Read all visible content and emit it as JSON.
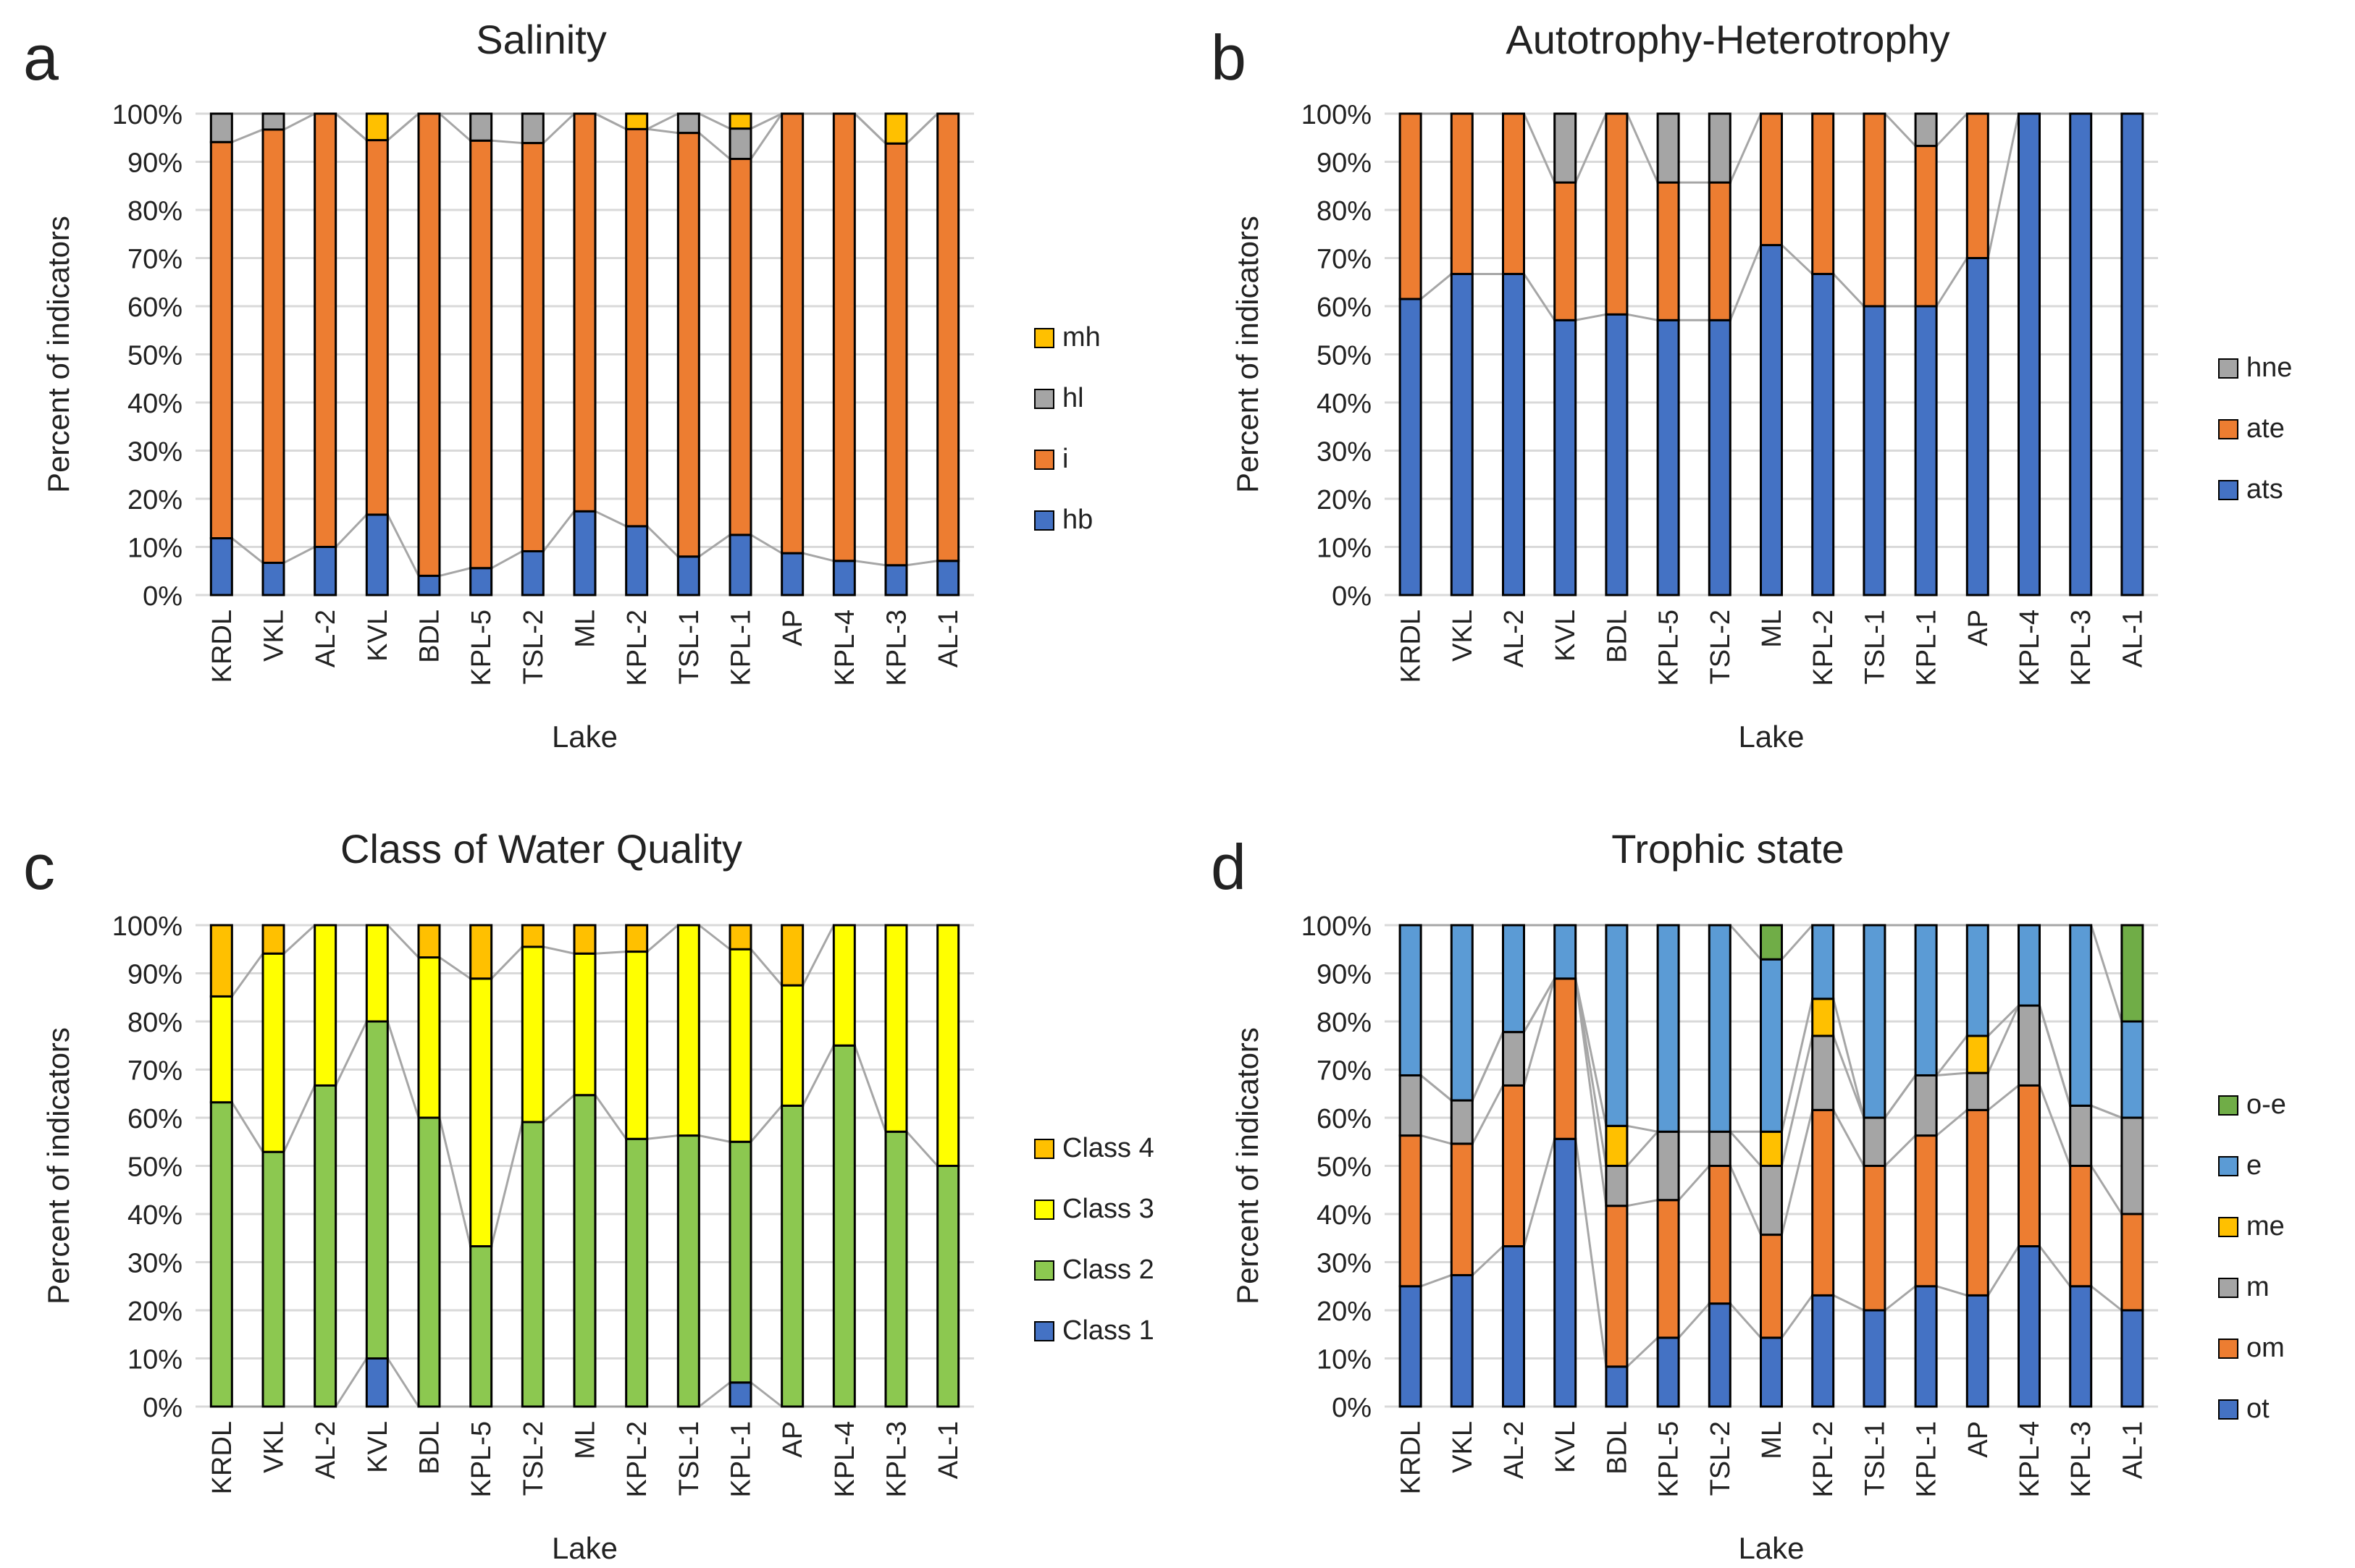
{
  "figure_title": "Four-panel stacked bar chart of lake indicators",
  "colors": {
    "hb": "#4472C4",
    "i": "#ED7D31",
    "hl": "#A5A5A5",
    "mh": "#FFC000",
    "ats": "#4472C4",
    "ate": "#ED7D31",
    "hne": "#A5A5A5",
    "class1": "#4472C4",
    "class2": "#8CC850",
    "class3": "#FFFF00",
    "class4": "#FFC000",
    "ot": "#4472C4",
    "om": "#ED7D31",
    "m": "#A5A5A5",
    "me": "#FFC000",
    "e": "#5B9BD5",
    "o-e": "#70AD47",
    "connector": "#A6A6A6",
    "gridline": "#D9D9D9"
  },
  "chart_data": [
    {
      "panel": "a",
      "type": "bar",
      "stacked": true,
      "title": "Salinity",
      "xlabel": "Lake",
      "ylabel": "Percent of indicators",
      "ylim": [
        0,
        100
      ],
      "yticks": [
        "0%",
        "10%",
        "20%",
        "30%",
        "40%",
        "50%",
        "60%",
        "70%",
        "80%",
        "90%",
        "100%"
      ],
      "categories": [
        "KRDL",
        "VKL",
        "AL-2",
        "KVL",
        "BDL",
        "KPL-5",
        "TSL-2",
        "ML",
        "KPL-2",
        "TSL-1",
        "KPL-1",
        "AP",
        "KPL-4",
        "KPL-3",
        "AL-1"
      ],
      "series": [
        {
          "name": "hb",
          "color_key": "hb",
          "values": [
            11.8,
            6.7,
            10.0,
            16.7,
            4.0,
            5.6,
            9.1,
            17.4,
            14.3,
            8.0,
            12.5,
            8.7,
            7.1,
            6.2,
            7.1
          ]
        },
        {
          "name": "i",
          "color_key": "i",
          "values": [
            82.3,
            90.0,
            90.0,
            77.8,
            96.0,
            88.8,
            84.8,
            82.6,
            82.5,
            88.0,
            78.1,
            91.3,
            92.9,
            87.6,
            92.9
          ]
        },
        {
          "name": "hl",
          "color_key": "hl",
          "values": [
            5.9,
            3.3,
            0,
            0,
            0,
            5.6,
            6.1,
            0,
            0,
            4.0,
            6.3,
            0,
            0,
            0,
            0
          ]
        },
        {
          "name": "mh",
          "color_key": "mh",
          "values": [
            0,
            0,
            0,
            5.5,
            0,
            0,
            0,
            0,
            3.2,
            0,
            3.1,
            0,
            0,
            6.2,
            0
          ]
        }
      ],
      "legend": [
        "mh",
        "hl",
        "i",
        "hb"
      ],
      "legend_position": "right"
    },
    {
      "panel": "b",
      "type": "bar",
      "stacked": true,
      "title": "Autotrophy-Heterotrophy",
      "xlabel": "Lake",
      "ylabel": "Percent of indicators",
      "ylim": [
        0,
        100
      ],
      "yticks": [
        "0%",
        "10%",
        "20%",
        "30%",
        "40%",
        "50%",
        "60%",
        "70%",
        "80%",
        "90%",
        "100%"
      ],
      "categories": [
        "KRDL",
        "VKL",
        "AL-2",
        "KVL",
        "BDL",
        "KPL-5",
        "TSL-2",
        "ML",
        "KPL-2",
        "TSL-1",
        "KPL-1",
        "AP",
        "KPL-4",
        "KPL-3",
        "AL-1"
      ],
      "series": [
        {
          "name": "ats",
          "color_key": "ats",
          "values": [
            61.5,
            66.7,
            66.7,
            57.1,
            58.3,
            57.1,
            57.1,
            72.7,
            66.7,
            60.0,
            60.0,
            70.0,
            100,
            100,
            100
          ]
        },
        {
          "name": "ate",
          "color_key": "ate",
          "values": [
            38.5,
            33.3,
            33.3,
            28.6,
            41.7,
            28.6,
            28.6,
            27.3,
            33.3,
            40.0,
            33.3,
            30.0,
            0,
            0,
            0
          ]
        },
        {
          "name": "hne",
          "color_key": "hne",
          "values": [
            0,
            0,
            0,
            14.3,
            0,
            14.3,
            14.3,
            0,
            0,
            0,
            6.7,
            0,
            0,
            0,
            0
          ]
        }
      ],
      "legend": [
        "hne",
        "ate",
        "ats"
      ],
      "legend_position": "right"
    },
    {
      "panel": "c",
      "type": "bar",
      "stacked": true,
      "title": "Class of Water Quality",
      "xlabel": "Lake",
      "ylabel": "Percent of indicators",
      "ylim": [
        0,
        100
      ],
      "yticks": [
        "0%",
        "10%",
        "20%",
        "30%",
        "40%",
        "50%",
        "60%",
        "70%",
        "80%",
        "90%",
        "100%"
      ],
      "categories": [
        "KRDL",
        "VKL",
        "AL-2",
        "KVL",
        "BDL",
        "KPL-5",
        "TSL-2",
        "ML",
        "KPL-2",
        "TSL-1",
        "KPL-1",
        "AP",
        "KPL-4",
        "KPL-3",
        "AL-1"
      ],
      "series": [
        {
          "name": "Class 1",
          "color_key": "class1",
          "values": [
            0,
            0,
            0,
            10.0,
            0,
            0,
            0,
            0,
            0,
            0,
            5.0,
            0,
            0,
            0,
            0
          ]
        },
        {
          "name": "Class 2",
          "color_key": "class2",
          "values": [
            63.2,
            52.9,
            66.7,
            70.0,
            60.0,
            33.3,
            59.1,
            64.7,
            55.6,
            56.3,
            50.0,
            62.5,
            75.0,
            57.1,
            50.0
          ]
        },
        {
          "name": "Class 3",
          "color_key": "class3",
          "values": [
            22.0,
            41.2,
            33.3,
            20.0,
            33.3,
            55.6,
            36.4,
            29.4,
            38.9,
            43.7,
            40.0,
            25.0,
            25.0,
            42.9,
            50.0
          ]
        },
        {
          "name": "Class 4",
          "color_key": "class4",
          "values": [
            14.8,
            5.9,
            0,
            0,
            6.7,
            11.1,
            4.5,
            5.9,
            5.5,
            0,
            5.0,
            12.5,
            0,
            0,
            0
          ]
        }
      ],
      "legend": [
        "Class 4",
        "Class 3",
        "Class 2",
        "Class 1"
      ],
      "legend_position": "right"
    },
    {
      "panel": "d",
      "type": "bar",
      "stacked": true,
      "title": "Trophic state",
      "xlabel": "Lake",
      "ylabel": "Percent of indicators",
      "ylim": [
        0,
        100
      ],
      "yticks": [
        "0%",
        "10%",
        "20%",
        "30%",
        "40%",
        "50%",
        "60%",
        "70%",
        "80%",
        "90%",
        "100%"
      ],
      "categories": [
        "KRDL",
        "VKL",
        "AL-2",
        "KVL",
        "BDL",
        "KPL-5",
        "TSL-2",
        "ML",
        "KPL-2",
        "TSL-1",
        "KPL-1",
        "AP",
        "KPL-4",
        "KPL-3",
        "AL-1"
      ],
      "series": [
        {
          "name": "ot",
          "color_key": "ot",
          "values": [
            25.0,
            27.3,
            33.3,
            55.6,
            8.3,
            14.3,
            21.4,
            14.3,
            23.1,
            20.0,
            25.0,
            23.1,
            33.3,
            25.0,
            20.0
          ]
        },
        {
          "name": "om",
          "color_key": "om",
          "values": [
            31.3,
            27.3,
            33.4,
            33.3,
            33.4,
            28.6,
            28.6,
            21.4,
            38.5,
            30.0,
            31.3,
            38.5,
            33.4,
            25.0,
            20.0
          ]
        },
        {
          "name": "m",
          "color_key": "m",
          "values": [
            12.5,
            9.0,
            11.1,
            0,
            8.3,
            14.2,
            7.1,
            14.3,
            15.4,
            10.0,
            12.5,
            7.7,
            16.6,
            12.5,
            20.0
          ]
        },
        {
          "name": "me",
          "color_key": "me",
          "values": [
            0,
            0,
            0,
            0,
            8.3,
            0,
            0,
            7.1,
            7.7,
            0,
            0,
            7.7,
            0,
            0,
            0
          ]
        },
        {
          "name": "e",
          "color_key": "e",
          "values": [
            31.2,
            36.4,
            22.2,
            11.1,
            41.7,
            42.9,
            42.9,
            35.8,
            15.3,
            40.0,
            31.2,
            23.0,
            16.7,
            37.5,
            20.0
          ]
        },
        {
          "name": "o-e",
          "color_key": "o-e",
          "values": [
            0,
            0,
            0,
            0,
            0,
            0,
            0,
            7.1,
            0,
            0,
            0,
            0,
            0,
            0,
            20.0
          ]
        }
      ],
      "legend": [
        "o-e",
        "e",
        "me",
        "m",
        "om",
        "ot"
      ],
      "legend_position": "right"
    }
  ]
}
